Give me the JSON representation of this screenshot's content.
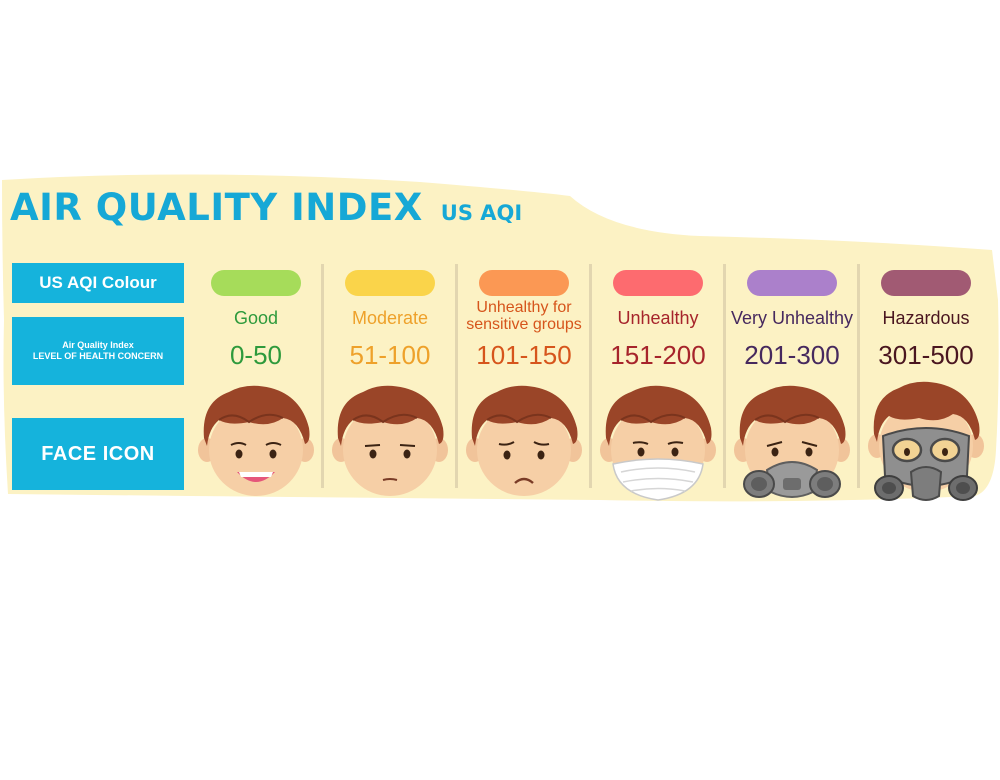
{
  "title": "AIR QUALITY INDEX",
  "subtitle": "US AQI",
  "labels": {
    "colour": "US AQI Colour",
    "concern_line1": "Air Quality Index",
    "concern_line2": "LEVEL OF HEALTH CONCERN",
    "face": "FACE ICON"
  },
  "levels": [
    {
      "name": "Good",
      "range": "0-50",
      "color": "#a6dc5a",
      "text_color": "#2e9a3c",
      "face": "happy-face-icon"
    },
    {
      "name": "Moderate",
      "range": "51-100",
      "color": "#fad44a",
      "text_color": "#eea12a",
      "face": "neutral-face-icon"
    },
    {
      "name": "Unhealthy for sensitive groups",
      "range": "101-150",
      "color": "#fb9854",
      "text_color": "#d6551c",
      "face": "sad-face-icon"
    },
    {
      "name": "Unhealthy",
      "range": "151-200",
      "color": "#fd6b6f",
      "text_color": "#a6242b",
      "face": "face-mask-icon"
    },
    {
      "name": "Very Unhealthy",
      "range": "201-300",
      "color": "#ab80cb",
      "text_color": "#46295e",
      "face": "respirator-mask-icon"
    },
    {
      "name": "Hazardous",
      "range": "301-500",
      "color": "#a15a73",
      "text_color": "#4a1620",
      "face": "gas-mask-icon"
    }
  ],
  "colors": {
    "accent": "#16a8d6",
    "label_box": "#15b3dc",
    "panel": "#fcf2c4"
  }
}
